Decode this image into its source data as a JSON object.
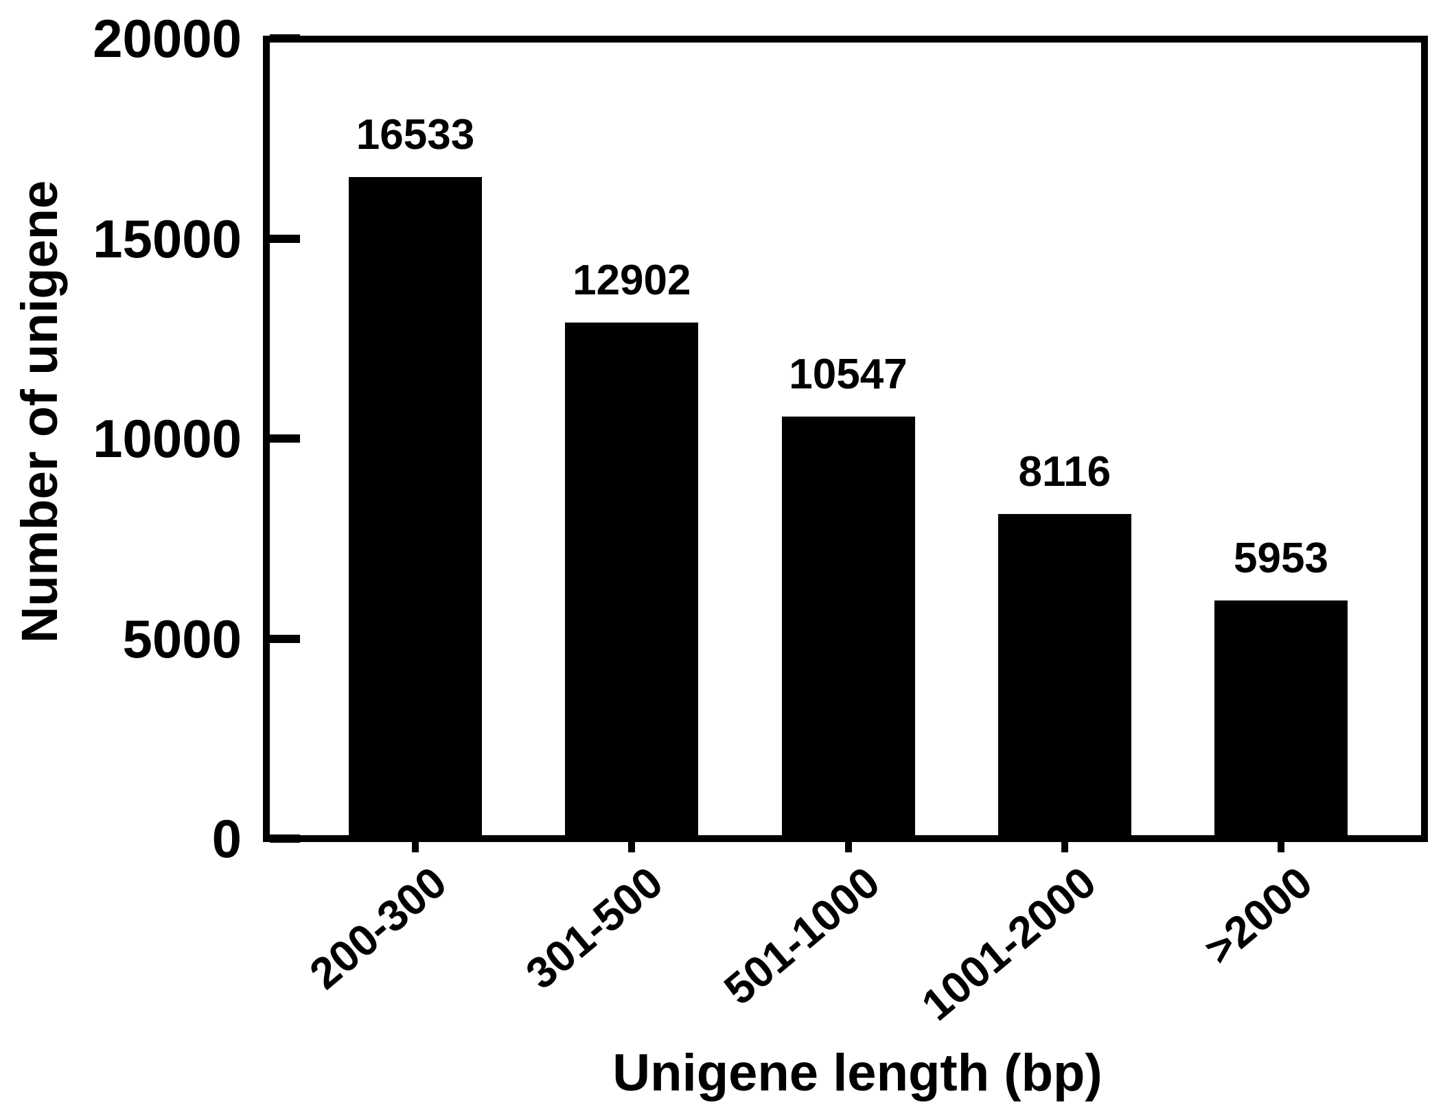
{
  "chart_data": {
    "type": "bar",
    "title": "",
    "categories": [
      "200-300",
      "301-500",
      "501-1000",
      "1001-2000",
      ">2000"
    ],
    "values": [
      16533,
      12902,
      10547,
      8116,
      5953
    ],
    "value_labels": [
      "16533",
      "12902",
      "10547",
      "8116",
      "5953"
    ],
    "xlabel": "Unigene length (bp)",
    "ylabel": "Number of unigene",
    "yticks": [
      0,
      5000,
      10000,
      15000,
      20000
    ],
    "ytick_labels": [
      "0",
      "5000",
      "10000",
      "15000",
      "20000"
    ],
    "ylim": [
      0,
      20000
    ],
    "grid": "off",
    "legend": "none",
    "bar_color": "#000000",
    "axis_color": "#000000",
    "background_color": "#ffffff",
    "xtick_label_rotation_deg": -40,
    "value_labels_shown": true
  }
}
